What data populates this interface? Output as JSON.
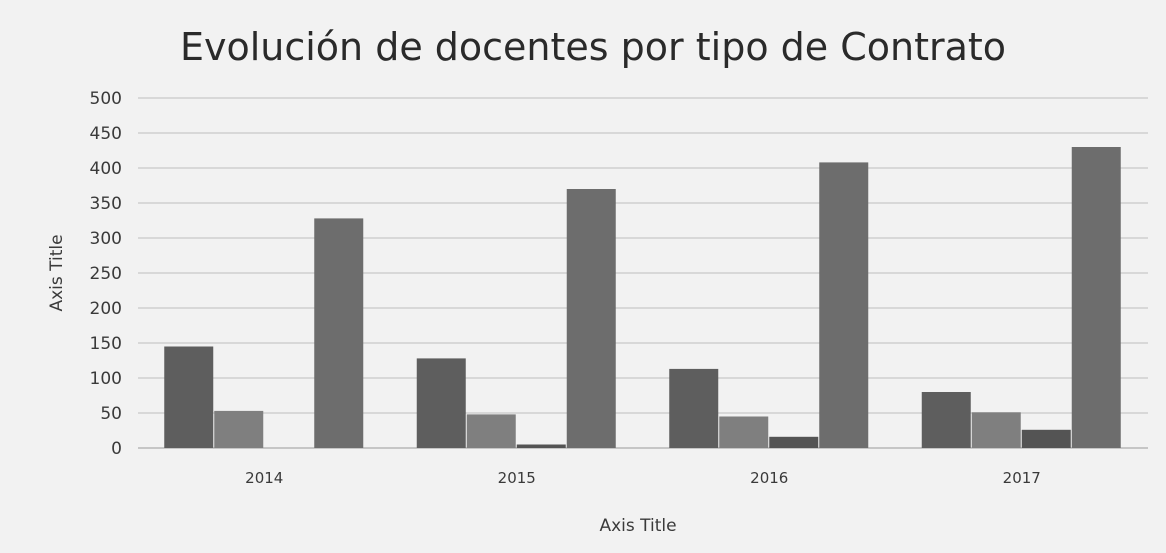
{
  "chart_data": {
    "type": "bar",
    "title": "Evolución  de docentes por tipo de Contrato",
    "xlabel": "Axis Title",
    "ylabel": "Axis Title",
    "categories": [
      "2014",
      "2015",
      "2016",
      "2017"
    ],
    "yticks": [
      "0",
      "50",
      "100",
      "150",
      "200",
      "250",
      "300",
      "350",
      "400",
      "450",
      "500"
    ],
    "ylim": [
      0,
      500
    ],
    "grid": true,
    "legend": "none",
    "series": [
      {
        "values": [
          145,
          128,
          113,
          80
        ],
        "color": "#5e5e5e"
      },
      {
        "values": [
          53,
          48,
          45,
          51
        ],
        "color": "#7f7f7f"
      },
      {
        "values": [
          0,
          5,
          16,
          26
        ],
        "color": "#545454"
      },
      {
        "values": [
          328,
          370,
          408,
          430
        ],
        "color": "#6d6d6d"
      }
    ]
  }
}
